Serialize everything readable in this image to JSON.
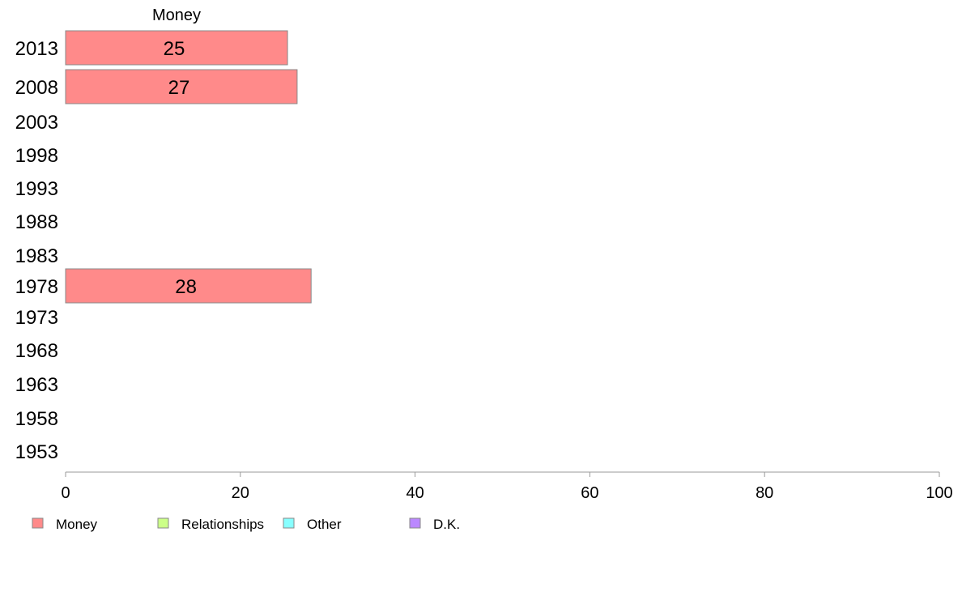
{
  "chart_data": {
    "type": "bar",
    "orientation": "horizontal",
    "stacked": true,
    "title": "",
    "xlabel": "",
    "ylabel": "",
    "xlim": [
      0,
      100
    ],
    "x_ticks": [
      0,
      20,
      40,
      60,
      80,
      100
    ],
    "categories": [
      "2013",
      "2008",
      "2003",
      "1998",
      "1993",
      "1988",
      "1983",
      "1978",
      "1973",
      "1968",
      "1963",
      "1958",
      "1953"
    ],
    "series": [
      {
        "name": "Money",
        "color": "#ff8a8a",
        "values": [
          25.4,
          26.5,
          null,
          null,
          null,
          null,
          null,
          28.1,
          null,
          null,
          null,
          null,
          null
        ],
        "labels": [
          "25",
          "27",
          "",
          "",
          "",
          "",
          "",
          "28",
          "",
          "",
          "",
          "",
          ""
        ]
      },
      {
        "name": "Relationships",
        "color": "#ccff88",
        "values": [
          null,
          null,
          null,
          null,
          null,
          null,
          null,
          null,
          null,
          null,
          null,
          null,
          null
        ]
      },
      {
        "name": "Other",
        "color": "#88ffff",
        "values": [
          null,
          null,
          null,
          null,
          null,
          null,
          null,
          null,
          null,
          null,
          null,
          null,
          null
        ]
      },
      {
        "name": "D.K.",
        "color": "#bb88ff",
        "values": [
          null,
          null,
          null,
          null,
          null,
          null,
          null,
          null,
          null,
          null,
          null,
          null,
          null
        ]
      }
    ],
    "series_header": "Money",
    "legend_position": "bottom-left",
    "grid": false
  }
}
